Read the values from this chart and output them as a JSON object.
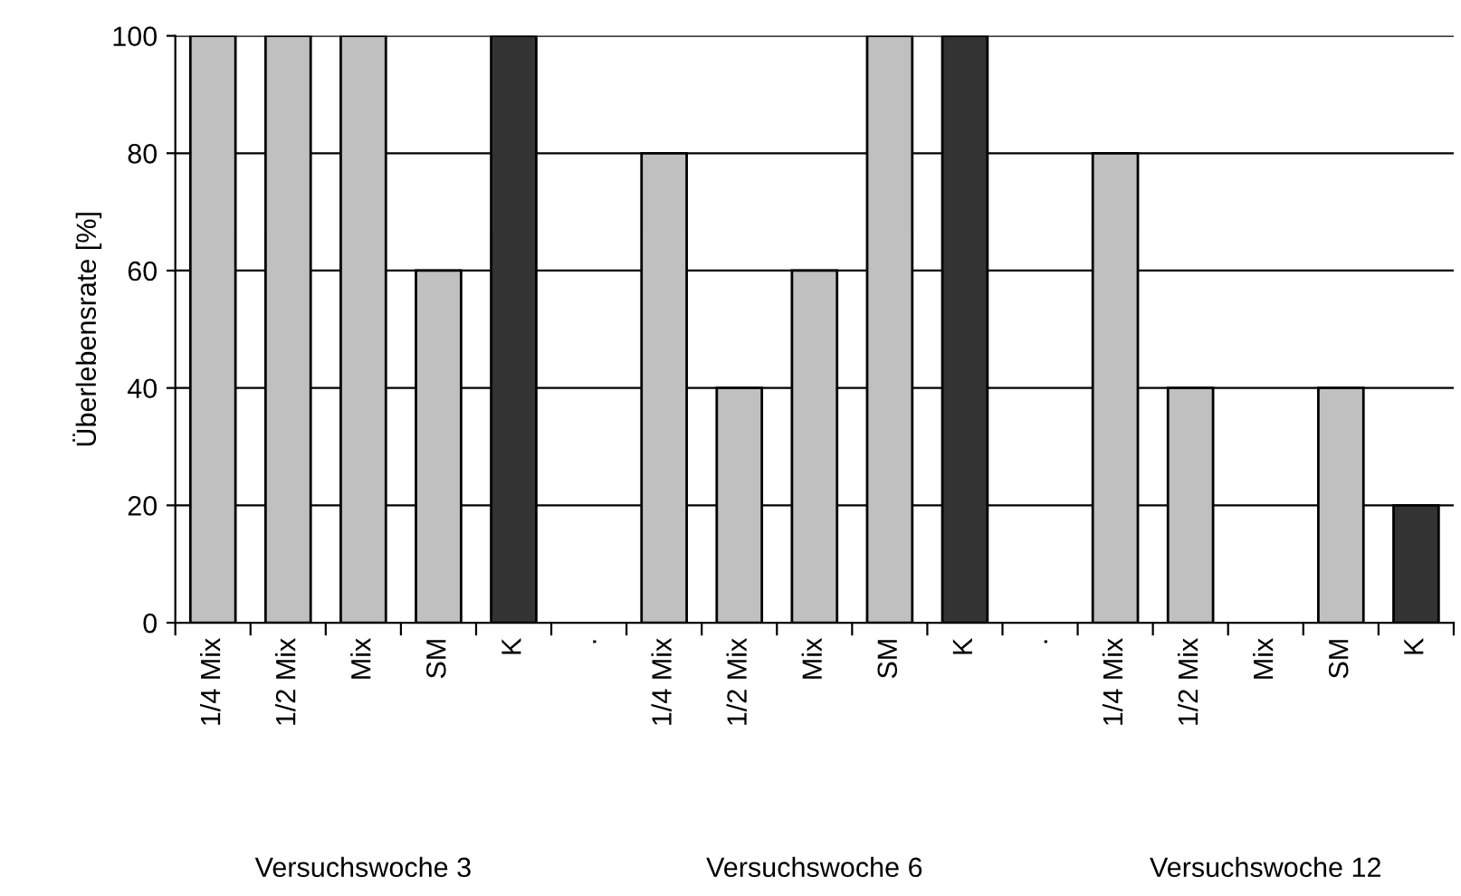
{
  "chart_data": {
    "type": "bar",
    "ylabel": "Überlebensrate [%]",
    "categories": [
      "1/4 Mix",
      "1/2 Mix",
      "Mix",
      "SM",
      "K",
      ".",
      "1/4 Mix",
      "1/2 Mix",
      "Mix",
      "SM",
      "K",
      ".",
      "1/4 Mix",
      "1/2 Mix",
      "Mix",
      "SM",
      "K"
    ],
    "values": [
      100,
      100,
      100,
      60,
      100,
      null,
      80,
      40,
      60,
      100,
      100,
      null,
      80,
      40,
      null,
      40,
      20
    ],
    "colors": [
      "#c0c0c0",
      "#c0c0c0",
      "#c0c0c0",
      "#c0c0c0",
      "#333333",
      "#c0c0c0",
      "#c0c0c0",
      "#c0c0c0",
      "#c0c0c0",
      "#c0c0c0",
      "#333333",
      "#c0c0c0",
      "#c0c0c0",
      "#c0c0c0",
      "#c0c0c0",
      "#c0c0c0",
      "#333333"
    ],
    "annotations": [
      "Versuchswoche 3",
      "Versuchswoche 6",
      "Versuchswoche 12"
    ],
    "ylim": [
      0,
      100
    ],
    "yticks": [
      0,
      20,
      40,
      60,
      80,
      100
    ],
    "grid": "y"
  }
}
